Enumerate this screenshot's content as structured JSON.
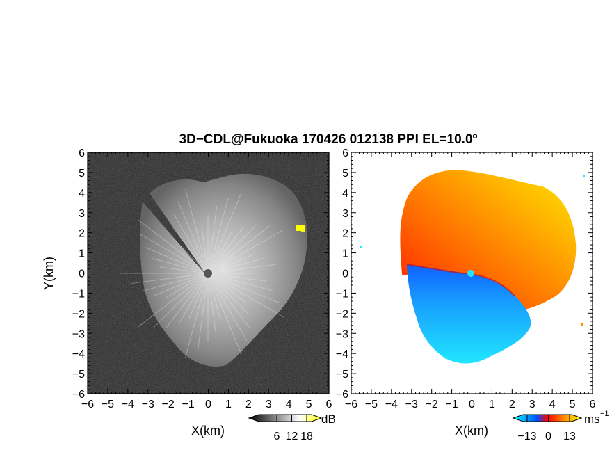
{
  "title": "3D−CDL@Fukuoka 170426 012138 PPI EL=10.0º",
  "chart_data": [
    {
      "type": "heatmap",
      "name": "reflectivity panel",
      "xlabel": "X(km)",
      "ylabel": "Y(km)",
      "xlim": [
        -6,
        6
      ],
      "ylim": [
        -6,
        6
      ],
      "x_ticks": [
        "−6",
        "−5",
        "−4",
        "−3",
        "−2",
        "−1",
        "0",
        "1",
        "2",
        "3",
        "4",
        "5",
        "6"
      ],
      "y_ticks": [
        "−6",
        "−5",
        "−4",
        "−3",
        "−2",
        "−1",
        "0",
        "1",
        "2",
        "3",
        "4",
        "5",
        "6"
      ],
      "colormap": [
        "#000000",
        "#ffffff",
        "#ffff00"
      ],
      "colorbar": {
        "unit": "dB",
        "ticks": [
          6,
          12,
          18
        ],
        "tick_labels": [
          "6",
          "12",
          "18"
        ]
      }
    },
    {
      "type": "heatmap",
      "name": "radial velocity panel",
      "xlabel": "X(km)",
      "ylabel": "",
      "xlim": [
        -6,
        6
      ],
      "ylim": [
        -6,
        6
      ],
      "x_ticks": [
        "−6",
        "−5",
        "−4",
        "−3",
        "−2",
        "−1",
        "0",
        "1",
        "2",
        "3",
        "4",
        "5",
        "6"
      ],
      "y_ticks": [
        "−6",
        "−5",
        "−4",
        "−3",
        "−2",
        "−1",
        "0",
        "1",
        "2",
        "3",
        "4",
        "5",
        "6"
      ],
      "colormap": [
        "#00ffff",
        "#0040ff",
        "#ff0000",
        "#ff8c00",
        "#ffff00"
      ],
      "colorbar": {
        "unit": "ms",
        "unit_sup": "−1",
        "ticks": [
          -13,
          0,
          13
        ],
        "tick_labels": [
          "−13",
          "0",
          "13"
        ]
      }
    }
  ]
}
